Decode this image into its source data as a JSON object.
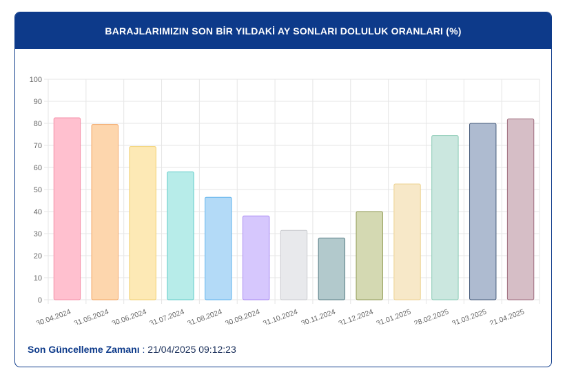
{
  "card": {
    "title": "BARAJLARIMIZIN SON BİR YILDAKİ AY SONLARI DOLULUK ORANLARI (%)"
  },
  "footer": {
    "label": "Son Güncelleme Zamanı",
    "separator": " : ",
    "value": "21/04/2025 09:12:23"
  },
  "chart_data": {
    "type": "bar",
    "title": "BARAJLARIMIZIN SON BİR YILDAKİ AY SONLARI DOLULUK ORANLARI (%)",
    "xlabel": "",
    "ylabel": "",
    "ylim": [
      0,
      100
    ],
    "yticks": [
      0,
      10,
      20,
      30,
      40,
      50,
      60,
      70,
      80,
      90,
      100
    ],
    "grid": true,
    "categories": [
      "30.04.2024",
      "31.05.2024",
      "30.06.2024",
      "31.07.2024",
      "31.08.2024",
      "30.09.2024",
      "31.10.2024",
      "30.11.2024",
      "31.12.2024",
      "31.01.2025",
      "28.02.2025",
      "31.03.2025",
      "21.04.2025"
    ],
    "values": [
      82.5,
      79.5,
      69.5,
      58,
      46.5,
      38,
      31.5,
      28,
      40,
      52.5,
      74.5,
      80,
      82
    ],
    "fill_colors": [
      "#ffc0cf",
      "#fdd6ad",
      "#fde9b5",
      "#b7ece9",
      "#b3daf7",
      "#d6c7fd",
      "#e8e9ec",
      "#b2c9cc",
      "#d4d9b2",
      "#f7e8c8",
      "#cbe7df",
      "#aebbd0",
      "#d6bec6"
    ],
    "stroke_colors": [
      "#f58fa8",
      "#f3a564",
      "#f1cf6e",
      "#5fcbc9",
      "#5eb2ec",
      "#a787f2",
      "#c9cbcf",
      "#587d86",
      "#8f9a55",
      "#ecd28f",
      "#89c9b4",
      "#435878",
      "#9d6a7c"
    ]
  }
}
